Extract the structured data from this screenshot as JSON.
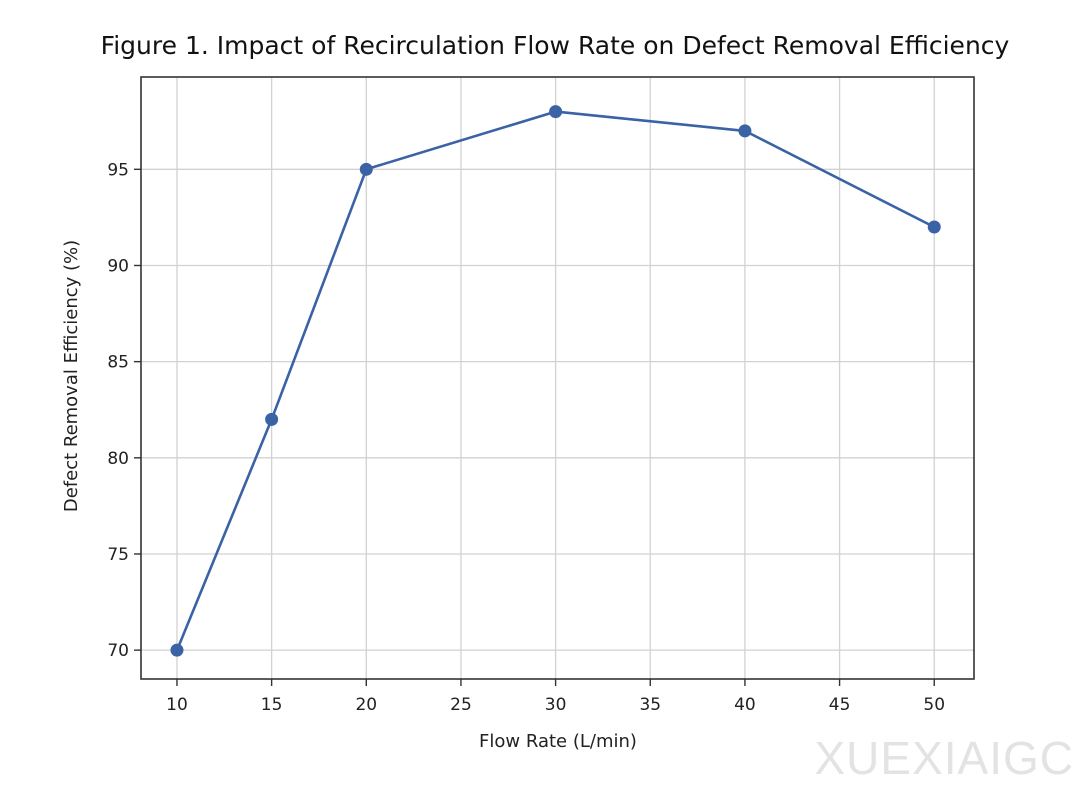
{
  "watermark": "XUEXIAIGC",
  "chart_data": {
    "type": "line",
    "title": "Figure 1. Impact of Recirculation Flow Rate on Defect Removal Efficiency",
    "xlabel": "Flow Rate (L/min)",
    "ylabel": "Defect Removal Efficiency (%)",
    "x": [
      10,
      15,
      20,
      30,
      40,
      50
    ],
    "series": [
      {
        "values": [
          70,
          82,
          95,
          98,
          97,
          92
        ],
        "color": "#3a62a5",
        "marker": "circle"
      }
    ],
    "xticks": [
      10,
      15,
      20,
      25,
      30,
      35,
      40,
      45,
      50
    ],
    "yticks": [
      70,
      75,
      80,
      85,
      90,
      95
    ],
    "xlim": [
      8.1,
      52.1
    ],
    "ylim": [
      68.5,
      99.8
    ],
    "grid": true,
    "legend": "none"
  }
}
